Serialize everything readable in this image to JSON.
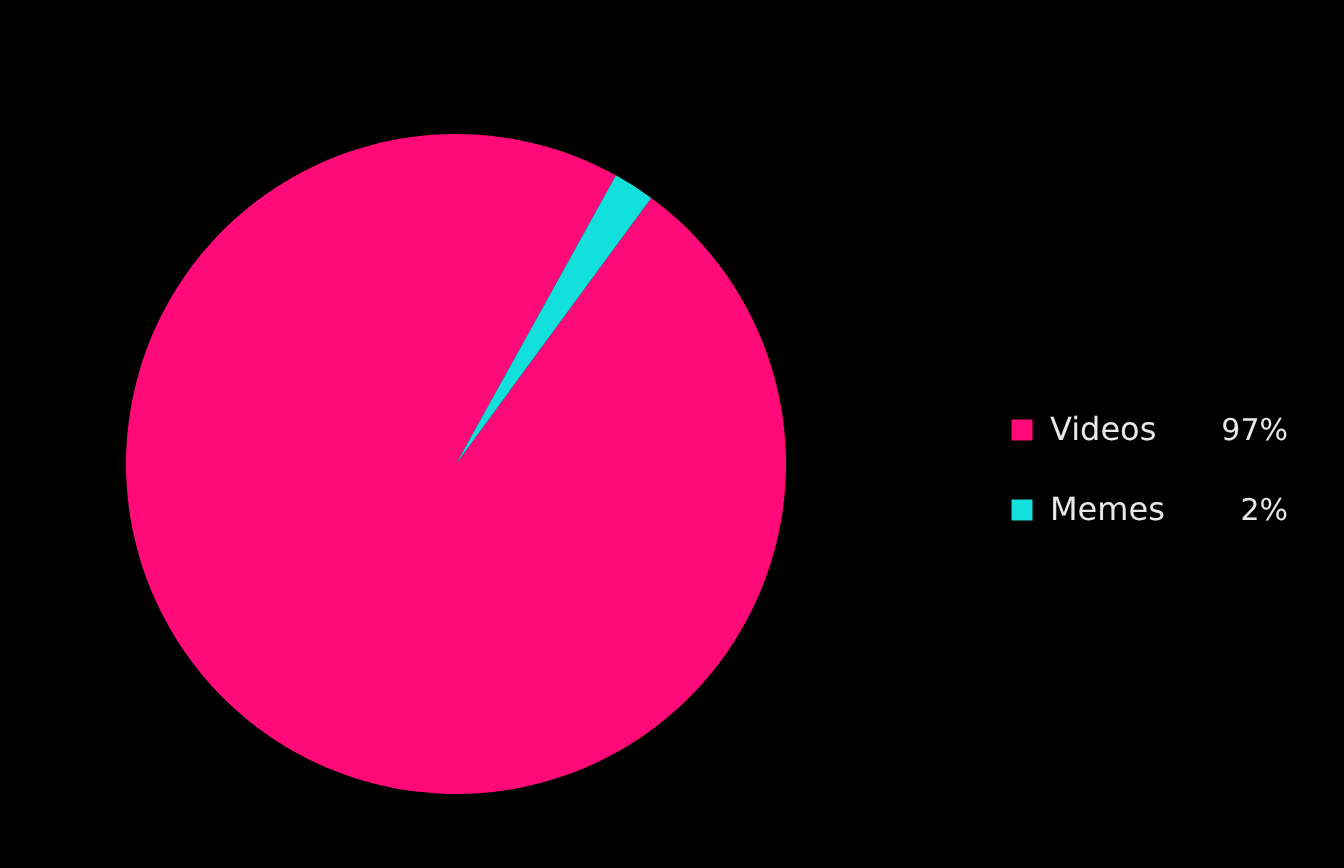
{
  "chart_data": {
    "type": "pie",
    "categories": [
      "Videos",
      "Memes"
    ],
    "values": [
      97,
      2
    ],
    "colors": [
      "#ff0a78",
      "#12e0dc"
    ],
    "value_labels": [
      "97%",
      "2%"
    ],
    "legend": "right"
  }
}
